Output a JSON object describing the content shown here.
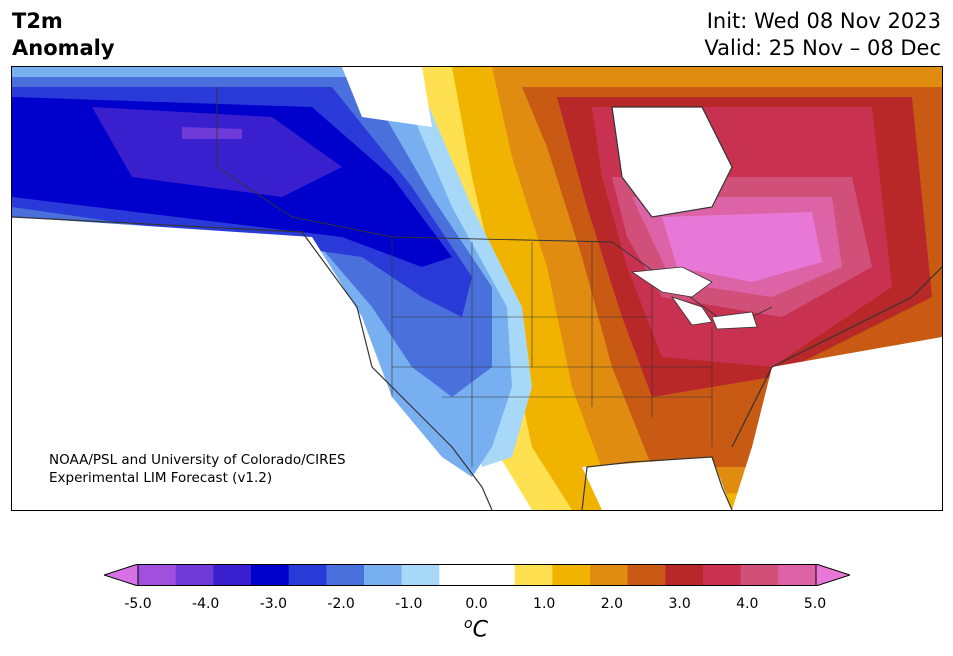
{
  "header": {
    "title_line1": "T2m",
    "title_line2": "Anomaly",
    "init": "Init: Wed 08 Nov 2023",
    "valid": "Valid: 25 Nov – 08 Dec"
  },
  "map": {
    "credit_line1": "NOAA/PSL and University of Colorado/CIRES",
    "credit_line2": "Experimental LIM Forecast (v1.2)"
  },
  "colorbar": {
    "ticks": [
      "-5.0",
      "-4.0",
      "-3.0",
      "-2.0",
      "-1.0",
      "0.0",
      "1.0",
      "2.0",
      "3.0",
      "4.0",
      "5.0"
    ],
    "unit_base": "C",
    "unit_sup": "o",
    "colors": [
      "#d672e6",
      "#a050dc",
      "#6e3ad8",
      "#3a1fcf",
      "#0000cc",
      "#2a3ad8",
      "#4a70dc",
      "#78aff0",
      "#a8d8f8",
      "#ffffff",
      "#ffffff",
      "#ffe050",
      "#f0b400",
      "#e08c10",
      "#c85a14",
      "#b82828",
      "#c83250",
      "#d0507a",
      "#dc64a6",
      "#e878d8"
    ]
  }
}
